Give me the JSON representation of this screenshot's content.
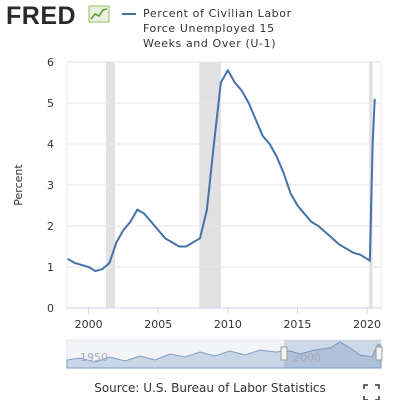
{
  "logo": "FRED",
  "chart_data": {
    "type": "line",
    "title": "Percent of Civilian Labor Force Unemployed 15 Weeks and Over (U-1)",
    "y_label": "Percent",
    "source": "Source: U.S. Bureau of Labor Statistics",
    "x": [
      1998.5,
      1999,
      1999.5,
      2000,
      2000.5,
      2001,
      2001.5,
      2002,
      2002.5,
      2003,
      2003.5,
      2004,
      2004.5,
      2005,
      2005.5,
      2006,
      2006.5,
      2007,
      2007.5,
      2008,
      2008.5,
      2009,
      2009.5,
      2010,
      2010.5,
      2011,
      2011.5,
      2012,
      2012.5,
      2013,
      2013.5,
      2014,
      2014.5,
      2015,
      2015.5,
      2016,
      2016.5,
      2017,
      2017.5,
      2018,
      2018.5,
      2019,
      2019.5,
      2020,
      2020.2,
      2020.4,
      2020.55
    ],
    "series": [
      {
        "name": "Percent of Civilian Labor Force Unemployed 15 Weeks and Over (U-1)",
        "color": "#4572a7",
        "values": [
          1.2,
          1.1,
          1.05,
          1.0,
          0.9,
          0.95,
          1.1,
          1.6,
          1.9,
          2.1,
          2.4,
          2.3,
          2.1,
          1.9,
          1.7,
          1.6,
          1.5,
          1.5,
          1.6,
          1.7,
          2.4,
          4.0,
          5.5,
          5.8,
          5.5,
          5.3,
          5.0,
          4.6,
          4.2,
          4.0,
          3.7,
          3.3,
          2.8,
          2.5,
          2.3,
          2.1,
          2.0,
          1.85,
          1.7,
          1.55,
          1.45,
          1.35,
          1.3,
          1.2,
          1.15,
          4.0,
          5.1
        ]
      }
    ],
    "shaded_ranges": [
      [
        2001.25,
        2001.9
      ],
      [
        2007.95,
        2009.5
      ],
      [
        2020.15,
        2020.4
      ]
    ],
    "shade_color": "#e1e1e1",
    "xlim": [
      1998.45,
      2021.0
    ],
    "xticks": [
      2000,
      2005,
      2010,
      2015,
      2020
    ],
    "ylim": [
      0,
      6
    ],
    "yticks": [
      0,
      1,
      2,
      3,
      4,
      5,
      6
    ],
    "grid": true,
    "navigator_labels": [
      "1950",
      "2000"
    ]
  }
}
